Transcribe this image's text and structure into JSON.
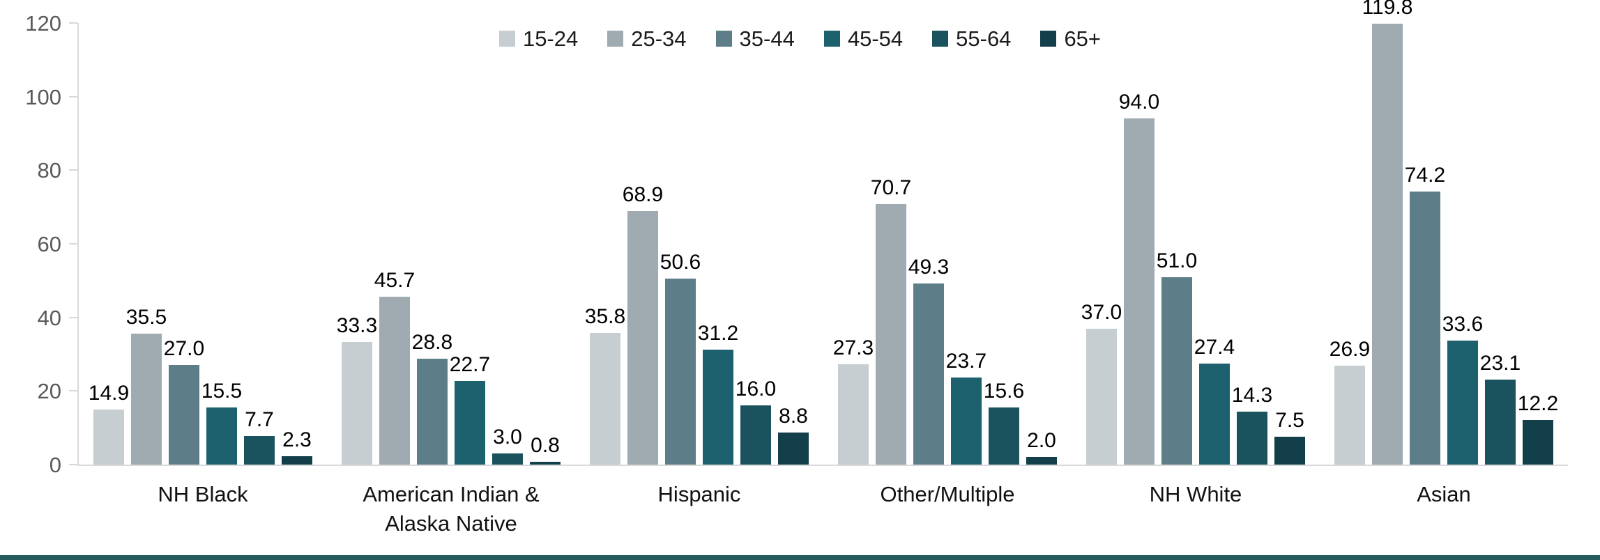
{
  "chart_data": {
    "type": "bar",
    "title": "",
    "xlabel": "",
    "ylabel": "",
    "categories": [
      "NH Black",
      "American Indian & Alaska Native",
      "Hispanic",
      "Other/Multiple",
      "NH White",
      "Asian"
    ],
    "series": [
      {
        "name": "15-24",
        "color": "#c6ced1",
        "values": [
          14.9,
          33.3,
          35.8,
          27.3,
          37.0,
          26.9
        ]
      },
      {
        "name": "25-34",
        "color": "#9fabb1",
        "values": [
          35.5,
          45.7,
          68.9,
          70.7,
          94.0,
          119.8
        ]
      },
      {
        "name": "35-44",
        "color": "#5d7e88",
        "values": [
          27.0,
          28.8,
          50.6,
          49.3,
          51.0,
          74.2
        ]
      },
      {
        "name": "45-54",
        "color": "#1c616d",
        "values": [
          15.5,
          22.7,
          31.2,
          23.7,
          27.4,
          33.6
        ]
      },
      {
        "name": "55-64",
        "color": "#1a525e",
        "values": [
          7.7,
          3.0,
          16.0,
          15.6,
          14.3,
          23.1
        ]
      },
      {
        "name": "65+",
        "color": "#123f4a",
        "values": [
          2.3,
          0.8,
          8.8,
          2.0,
          7.5,
          12.2
        ]
      }
    ],
    "y_axis": {
      "min": 0,
      "max": 120,
      "step": 20,
      "ticks": [
        0,
        20,
        40,
        60,
        80,
        100,
        120
      ]
    },
    "legend_position": "top-center",
    "grid": false,
    "value_label_format": "one-decimal",
    "colors": {
      "axis_line": "#d9d9d9",
      "tick_label": "#595959",
      "data_label": "#000000",
      "category_label": "#111111",
      "accent_band": "#255c5b",
      "background": "#ffffff"
    }
  }
}
